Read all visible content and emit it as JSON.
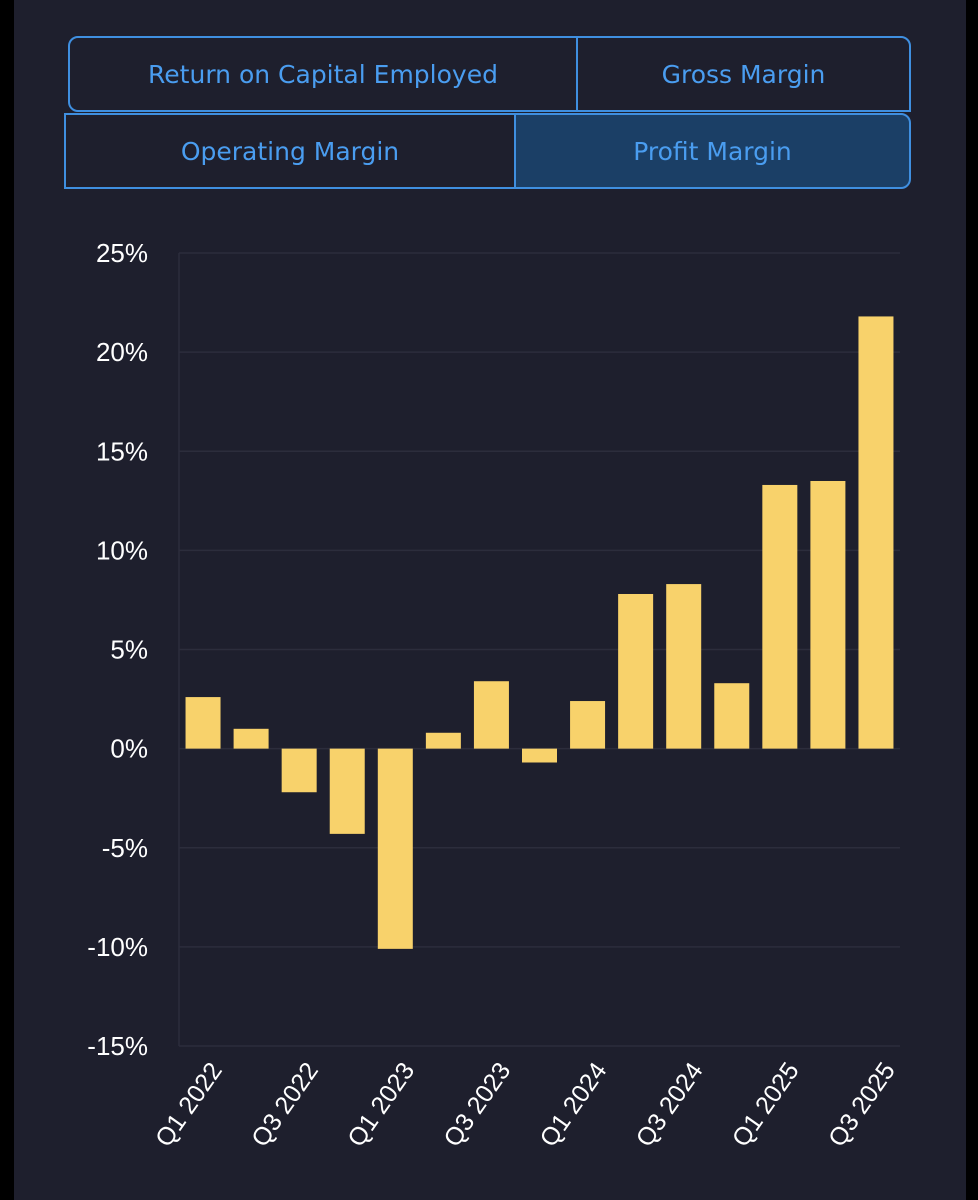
{
  "tabs": {
    "roce": "Return on Capital Employed",
    "gross": "Gross Margin",
    "operating": "Operating Margin",
    "profit": "Profit Margin"
  },
  "colors": {
    "bar": "#f8d26b",
    "grid": "#2c2d3c",
    "axis_text": "#ffffff",
    "tab_border": "#3f8fe0",
    "tab_text": "#4a9df0",
    "tab_active_bg": "#1b3f66",
    "background": "#1e1f2d"
  },
  "chart_data": {
    "type": "bar",
    "categories": [
      "Q1 2022",
      "Q2 2022",
      "Q3 2022",
      "Q4 2022",
      "Q1 2023",
      "Q2 2023",
      "Q3 2023",
      "Q4 2023",
      "Q1 2024",
      "Q2 2024",
      "Q3 2024",
      "Q4 2024",
      "Q1 2025",
      "Q2 2025",
      "Q3 2025"
    ],
    "x_tick_labels": [
      "Q1 2022",
      "Q3 2022",
      "Q1 2023",
      "Q3 2023",
      "Q1 2024",
      "Q3 2024",
      "Q1 2025",
      "Q3 2025"
    ],
    "values": [
      2.6,
      1.0,
      -2.2,
      -4.3,
      -10.1,
      0.8,
      3.4,
      -0.7,
      2.4,
      7.8,
      8.3,
      3.3,
      13.3,
      13.5,
      21.8
    ],
    "ylim": [
      -15,
      25
    ],
    "y_ticks": [
      25,
      20,
      15,
      10,
      5,
      0,
      -5,
      -10,
      -15
    ],
    "y_tick_labels": [
      "25%",
      "20%",
      "15%",
      "10%",
      "5%",
      "0%",
      "-5%",
      "-10%",
      "-15%"
    ],
    "grid": true,
    "title": "",
    "xlabel": "",
    "ylabel": ""
  }
}
